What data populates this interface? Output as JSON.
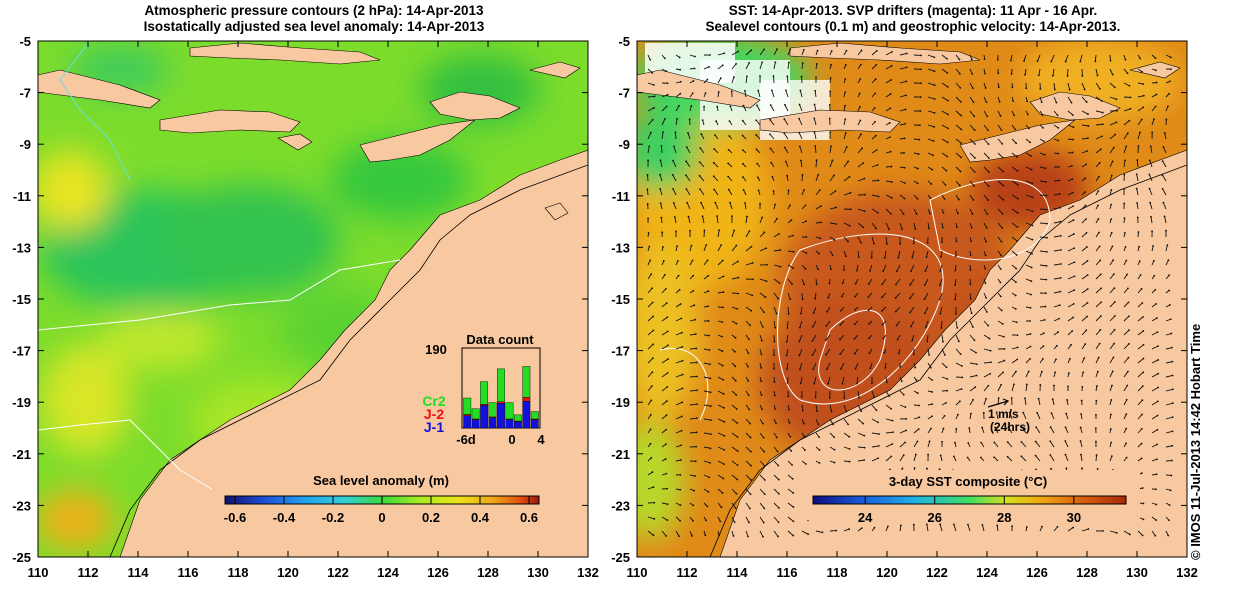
{
  "left_map": {
    "title_line1": "Atmospheric pressure contours (2 hPa): 14-Apr-2013",
    "title_line2": "Isostatically adjusted sea level anomaly: 14-Apr-2013",
    "colorbar": {
      "title": "Sea level anomaly (m)",
      "ticks": [
        "-0.6",
        "-0.4",
        "-0.2",
        "0",
        "0.2",
        "0.4",
        "0.6"
      ],
      "range": [
        -0.6,
        0.6
      ]
    },
    "inset": {
      "title": "Data count",
      "ymax_label": "190",
      "x_labels": [
        "-6d",
        "0",
        "4"
      ],
      "legend": [
        {
          "name": "Cr2",
          "color": "#22dd22"
        },
        {
          "name": "J-2",
          "color": "#ee1111"
        },
        {
          "name": "J-1",
          "color": "#1111dd"
        }
      ],
      "bars": [
        {
          "j1": 30,
          "j2": 3,
          "cr2": 40
        },
        {
          "j1": 20,
          "j2": 2,
          "cr2": 25
        },
        {
          "j1": 55,
          "j2": 3,
          "cr2": 55
        },
        {
          "j1": 25,
          "j2": 2,
          "cr2": 35
        },
        {
          "j1": 60,
          "j2": 4,
          "cr2": 80
        },
        {
          "j1": 20,
          "j2": 2,
          "cr2": 40
        },
        {
          "j1": 15,
          "j2": 2,
          "cr2": 15
        },
        {
          "j1": 65,
          "j2": 10,
          "cr2": 75
        },
        {
          "j1": 20,
          "j2": 2,
          "cr2": 18
        }
      ]
    }
  },
  "right_map": {
    "title_line1": "SST: 14-Apr-2013. SVP drifters (magenta): 11 Apr - 16 Apr.",
    "title_line2": "Sealevel contours (0.1 m) and geostrophic velocity: 14-Apr-2013.",
    "colorbar": {
      "title": "3-day SST composite (°C)",
      "ticks": [
        "24",
        "26",
        "28",
        "30"
      ],
      "range": [
        22.5,
        31.5
      ]
    },
    "scale_label_1": "1 m/s",
    "scale_label_2": "(24hrs)"
  },
  "axes": {
    "lon_ticks": [
      "110",
      "112",
      "114",
      "116",
      "118",
      "120",
      "122",
      "124",
      "126",
      "128",
      "130",
      "132"
    ],
    "lat_ticks": [
      "-5",
      "-7",
      "-9",
      "-11",
      "-13",
      "-15",
      "-17",
      "-19",
      "-21",
      "-23",
      "-25"
    ],
    "lon_range": [
      110,
      132
    ],
    "lat_range": [
      -25,
      -5
    ]
  },
  "copyright": "© IMOS 11-Jul-2013 14:42 Hobart Time",
  "colors": {
    "land": "#f8c8a0",
    "sla_scale": [
      "#10106e",
      "#1c4cd6",
      "#22a0ee",
      "#33d0d8",
      "#3cd83c",
      "#a8ec22",
      "#ece41a",
      "#f0a818",
      "#e05010",
      "#a01808"
    ],
    "sst_scale": [
      "#100c80",
      "#1858d8",
      "#20b0e8",
      "#40e060",
      "#d8e020",
      "#f0a010",
      "#d86010",
      "#a82808"
    ]
  }
}
